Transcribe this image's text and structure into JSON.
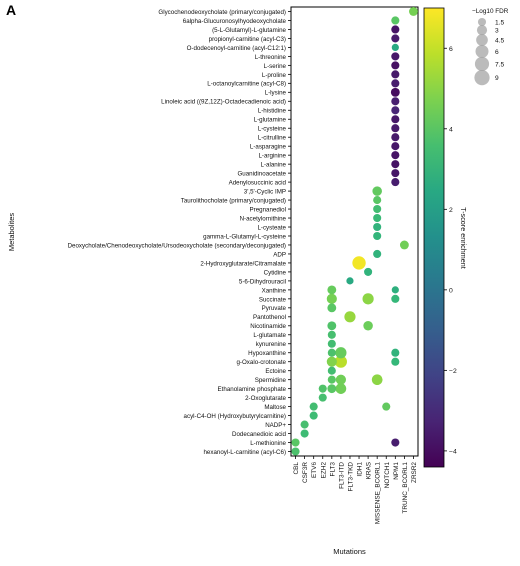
{
  "chart_data": {
    "type": "scatter",
    "panel_label": "A",
    "xlabel": "Mutations",
    "ylabel": "Metabolites",
    "x_categories": [
      "CBL",
      "CSF3R",
      "ETV6",
      "EZH2",
      "FLT3",
      "FLT3-ITD",
      "FLT3-TKD",
      "IDH1",
      "KRAS",
      "MISSENSE_BCORL1",
      "NOTCH1",
      "NPM1",
      "TRUNC_BCORL1",
      "ZRSR2"
    ],
    "y_categories": [
      "Glycochenodeoxycholate (primary/conjugated)",
      "6alpha-Glucuronosylhyodeoxycholate",
      "(5-L-Glutamyl)-L-glutamine",
      "propionyl-carnitine (acyl-C3)",
      "O-dodecenoyl-carnitine (acyl-C12:1)",
      "L-threonine",
      "L-serine",
      "L-proline",
      "L-octanoylcarnitine (acyl-C8)",
      "L-lysine",
      "Linoleic acid ((9Z,12Z)-Octadecadienoic acid)",
      "L-histidine",
      "L-glutamine",
      "L-cysteine",
      "L-citrulline",
      "L-asparagine",
      "L-arginine",
      "L-alanine",
      "Guanidinoacetate",
      "Adenylosuccinic acid",
      "3',5'-Cyclic IMP",
      "Taurolithocholate (primary/conjugated)",
      "Pregnanediol",
      "N-acetylornithine",
      "L-cysteate",
      "gamma-L-Glutamyl-L-cysteine",
      "Deoxycholate/Chenodeoxycholate/Ursodeoxycholate (secondary/deconjugated)",
      "ADP",
      "2-Hydroxyglutarate/Citramalate",
      "Cytidine",
      "5-6-Dihydrouracil",
      "Xanthine",
      "Succinate",
      "Pyruvate",
      "Pantothenol",
      "Nicotinamide",
      "L-glutamate",
      "kynurenine",
      "Hypoxanthine",
      "g-Oxalo-crotonate",
      "Ectoine",
      "Spermidine",
      "Ethanolamine phosphate",
      "2-Oxoglutarate",
      "Maltose",
      "acyl-C4-OH (Hydroxybutyrylcarnitine)",
      "NADP+",
      "Dodecanedioic acid",
      "L-methionine",
      "hexanoyl-L-carnitine (acyl-C6)"
    ],
    "points": [
      {
        "x": "ZRSR2",
        "y": "Glycochenodeoxycholate (primary/conjugated)",
        "t": 4.6,
        "fdr": 2
      },
      {
        "x": "NPM1",
        "y": "6alpha-Glucuronosylhyodeoxycholate",
        "t": 4.0,
        "fdr": 1.5
      },
      {
        "x": "NPM1",
        "y": "(5-L-Glutamyl)-L-glutamine",
        "t": -3.8,
        "fdr": 1.5
      },
      {
        "x": "NPM1",
        "y": "propionyl-carnitine (acyl-C3)",
        "t": -3.6,
        "fdr": 1.5
      },
      {
        "x": "NPM1",
        "y": "O-dodecenoyl-carnitine (acyl-C12:1)",
        "t": 2.5,
        "fdr": 1
      },
      {
        "x": "NPM1",
        "y": "L-threonine",
        "t": -3.7,
        "fdr": 1.5
      },
      {
        "x": "NPM1",
        "y": "L-serine",
        "t": -3.9,
        "fdr": 1.5
      },
      {
        "x": "NPM1",
        "y": "L-proline",
        "t": -3.6,
        "fdr": 1.5
      },
      {
        "x": "NPM1",
        "y": "L-octanoylcarnitine (acyl-C8)",
        "t": -3.5,
        "fdr": 1.5
      },
      {
        "x": "NPM1",
        "y": "L-lysine",
        "t": -4.0,
        "fdr": 2
      },
      {
        "x": "NPM1",
        "y": "Linoleic acid ((9Z,12Z)-Octadecadienoic acid)",
        "t": -3.4,
        "fdr": 1.5
      },
      {
        "x": "NPM1",
        "y": "L-histidine",
        "t": -3.2,
        "fdr": 1.5
      },
      {
        "x": "NPM1",
        "y": "L-glutamine",
        "t": -3.7,
        "fdr": 1.5
      },
      {
        "x": "NPM1",
        "y": "L-cysteine",
        "t": -3.6,
        "fdr": 1.5
      },
      {
        "x": "NPM1",
        "y": "L-citrulline",
        "t": -3.6,
        "fdr": 1.5
      },
      {
        "x": "NPM1",
        "y": "L-asparagine",
        "t": -3.7,
        "fdr": 1.5
      },
      {
        "x": "NPM1",
        "y": "L-arginine",
        "t": -3.8,
        "fdr": 1.5
      },
      {
        "x": "NPM1",
        "y": "L-alanine",
        "t": -3.8,
        "fdr": 1.5
      },
      {
        "x": "NPM1",
        "y": "Guanidinoacetate",
        "t": -3.7,
        "fdr": 1.5
      },
      {
        "x": "NPM1",
        "y": "Adenylosuccinic acid",
        "t": -3.5,
        "fdr": 1.5
      },
      {
        "x": "MISSENSE_BCORL1",
        "y": "3',5'-Cyclic IMP",
        "t": 4.2,
        "fdr": 2.5
      },
      {
        "x": "MISSENSE_BCORL1",
        "y": "Taurolithocholate (primary/conjugated)",
        "t": 4.0,
        "fdr": 1.5
      },
      {
        "x": "MISSENSE_BCORL1",
        "y": "Pregnanediol",
        "t": 3.5,
        "fdr": 1.5
      },
      {
        "x": "MISSENSE_BCORL1",
        "y": "N-acetylornithine",
        "t": 3.3,
        "fdr": 1.5
      },
      {
        "x": "MISSENSE_BCORL1",
        "y": "L-cysteate",
        "t": 3.0,
        "fdr": 1.5
      },
      {
        "x": "MISSENSE_BCORL1",
        "y": "gamma-L-Glutamyl-L-cysteine",
        "t": 3.1,
        "fdr": 1.5
      },
      {
        "x": "TRUNC_BCORL1",
        "y": "Deoxycholate/Chenodeoxycholate/Ursodeoxycholate (secondary/deconjugated)",
        "t": 4.5,
        "fdr": 2
      },
      {
        "x": "MISSENSE_BCORL1",
        "y": "ADP",
        "t": 3.0,
        "fdr": 1.5
      },
      {
        "x": "IDH1",
        "y": "2-Hydroxyglutarate/Citramalate",
        "t": 6.8,
        "fdr": 6.5
      },
      {
        "x": "KRAS",
        "y": "Cytidine",
        "t": 3.0,
        "fdr": 1.5
      },
      {
        "x": "FLT3-TKD",
        "y": "5-6-Dihydrouracil",
        "t": 2.5,
        "fdr": 1
      },
      {
        "x": "FLT3",
        "y": "Xanthine",
        "t": 4.3,
        "fdr": 2
      },
      {
        "x": "NPM1",
        "y": "Xanthine",
        "t": 2.8,
        "fdr": 1
      },
      {
        "x": "FLT3",
        "y": "Succinate",
        "t": 4.6,
        "fdr": 3
      },
      {
        "x": "KRAS",
        "y": "Succinate",
        "t": 5.0,
        "fdr": 4
      },
      {
        "x": "NPM1",
        "y": "Succinate",
        "t": 3.2,
        "fdr": 1.5
      },
      {
        "x": "FLT3",
        "y": "Pyruvate",
        "t": 4.0,
        "fdr": 2
      },
      {
        "x": "FLT3-TKD",
        "y": "Pantothenol",
        "t": 5.2,
        "fdr": 4
      },
      {
        "x": "FLT3",
        "y": "Nicotinamide",
        "t": 3.8,
        "fdr": 2
      },
      {
        "x": "KRAS",
        "y": "Nicotinamide",
        "t": 4.4,
        "fdr": 2.5
      },
      {
        "x": "FLT3",
        "y": "L-glutamate",
        "t": 3.6,
        "fdr": 1.5
      },
      {
        "x": "FLT3",
        "y": "kynurenine",
        "t": 3.5,
        "fdr": 1.5
      },
      {
        "x": "FLT3",
        "y": "Hypoxanthine",
        "t": 3.7,
        "fdr": 1.5
      },
      {
        "x": "FLT3-ITD",
        "y": "Hypoxanthine",
        "t": 4.3,
        "fdr": 4
      },
      {
        "x": "NPM1",
        "y": "Hypoxanthine",
        "t": 3.0,
        "fdr": 1.5
      },
      {
        "x": "FLT3",
        "y": "g-Oxalo-crotonate",
        "t": 4.8,
        "fdr": 3
      },
      {
        "x": "FLT3-ITD",
        "y": "g-Oxalo-crotonate",
        "t": 5.8,
        "fdr": 5
      },
      {
        "x": "NPM1",
        "y": "g-Oxalo-crotonate",
        "t": 3.2,
        "fdr": 1.5
      },
      {
        "x": "FLT3",
        "y": "Ectoine",
        "t": 3.5,
        "fdr": 1.5
      },
      {
        "x": "FLT3",
        "y": "Spermidine",
        "t": 4.0,
        "fdr": 1.5
      },
      {
        "x": "FLT3-ITD",
        "y": "Spermidine",
        "t": 4.5,
        "fdr": 3
      },
      {
        "x": "MISSENSE_BCORL1",
        "y": "Spermidine",
        "t": 5.0,
        "fdr": 3.5
      },
      {
        "x": "EZH2",
        "y": "Ethanolamine phosphate",
        "t": 3.8,
        "fdr": 1.5
      },
      {
        "x": "FLT3",
        "y": "Ethanolamine phosphate",
        "t": 4.0,
        "fdr": 2
      },
      {
        "x": "FLT3-ITD",
        "y": "Ethanolamine phosphate",
        "t": 4.5,
        "fdr": 3.5
      },
      {
        "x": "EZH2",
        "y": "2-Oxoglutarate",
        "t": 3.6,
        "fdr": 1.5
      },
      {
        "x": "ETV6",
        "y": "Maltose",
        "t": 3.5,
        "fdr": 1.5
      },
      {
        "x": "NOTCH1",
        "y": "Maltose",
        "t": 4.2,
        "fdr": 1.5
      },
      {
        "x": "ETV6",
        "y": "acyl-C4-OH (Hydroxybutyrylcarnitine)",
        "t": 3.4,
        "fdr": 1.5
      },
      {
        "x": "CSF3R",
        "y": "NADP+",
        "t": 3.6,
        "fdr": 1.5
      },
      {
        "x": "CSF3R",
        "y": "Dodecanedioic acid",
        "t": 3.4,
        "fdr": 1.5
      },
      {
        "x": "CBL",
        "y": "L-methionine",
        "t": 4.0,
        "fdr": 1.5
      },
      {
        "x": "NPM1",
        "y": "L-methionine",
        "t": -3.5,
        "fdr": 1.5
      },
      {
        "x": "CBL",
        "y": "hexanoyl-L-carnitine (acyl-C6)",
        "t": 3.7,
        "fdr": 1.5
      }
    ],
    "colorbar": {
      "label": "T-score enrichment",
      "ticks": [
        "6",
        "4",
        "2",
        "0",
        "−2",
        "−4"
      ],
      "tick_values": [
        6,
        4,
        2,
        0,
        -2,
        -4
      ],
      "range": [
        -4.4,
        7.0
      ],
      "colormap": "viridis"
    },
    "size_legend": {
      "title": "−Log10 FDR",
      "labels": [
        "1.5",
        "3",
        "4.5",
        "6",
        "7.5",
        "9"
      ],
      "values": [
        1.5,
        3,
        4.5,
        6,
        7.5,
        9
      ]
    },
    "grid": false
  }
}
